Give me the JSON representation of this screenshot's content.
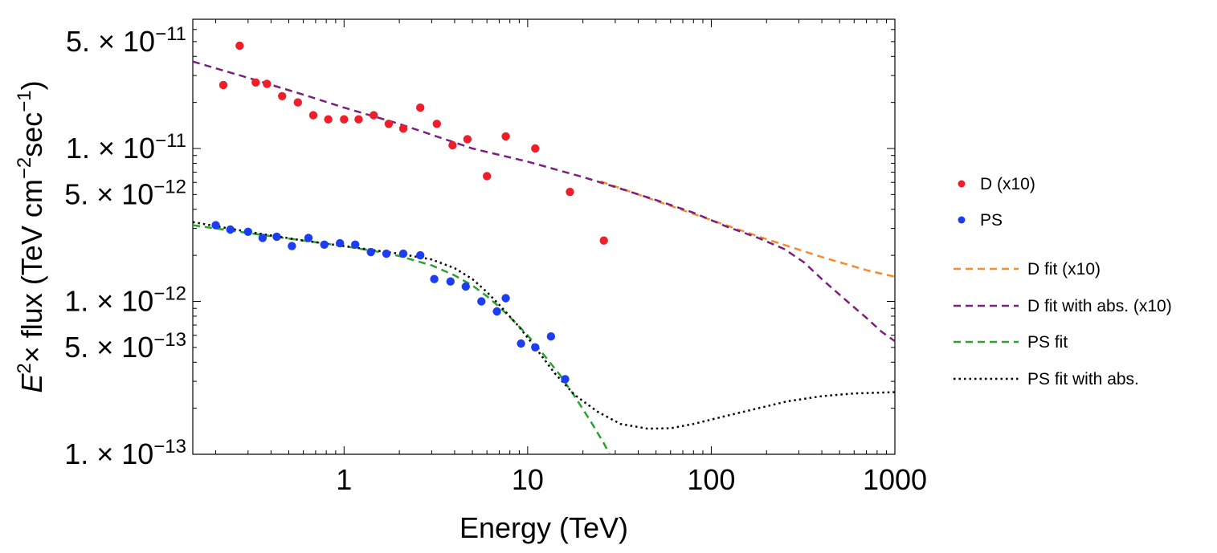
{
  "chart_data": {
    "type": "scatter",
    "x_scale": "log",
    "y_scale": "log",
    "xlabel": "Energy (TeV)",
    "ylabel_prefix": "E",
    "ylabel_sup": "2",
    "ylabel_main": "× flux (TeV cm",
    "ylabel_sup2": "−2",
    "ylabel_mid": "sec",
    "ylabel_sup3": "−1",
    "ylabel_end": ")",
    "xlim": [
      0.15,
      1000
    ],
    "ylim": [
      1e-13,
      7e-11
    ],
    "x_ticks": [
      {
        "value": 1,
        "label": "1"
      },
      {
        "value": 10,
        "label": "10"
      },
      {
        "value": 100,
        "label": "100"
      },
      {
        "value": 1000,
        "label": "1000"
      }
    ],
    "y_ticks": [
      {
        "value": 1e-13,
        "label": "1. × 10",
        "exp": "−13"
      },
      {
        "value": 5e-13,
        "label": "5. × 10",
        "exp": "−13"
      },
      {
        "value": 1e-12,
        "label": "1. × 10",
        "exp": "−12"
      },
      {
        "value": 5e-12,
        "label": "5. × 10",
        "exp": "−12"
      },
      {
        "value": 1e-11,
        "label": "1. × 10",
        "exp": "−11"
      },
      {
        "value": 5e-11,
        "label": "5. × 10",
        "exp": "−11"
      }
    ],
    "scatter_series": [
      {
        "name": "D (x10)",
        "color": "#ee1f2b",
        "points": [
          [
            0.22,
            2.6e-11
          ],
          [
            0.27,
            4.7e-11
          ],
          [
            0.33,
            2.7e-11
          ],
          [
            0.38,
            2.65e-11
          ],
          [
            0.46,
            2.2e-11
          ],
          [
            0.56,
            2e-11
          ],
          [
            0.68,
            1.65e-11
          ],
          [
            0.82,
            1.55e-11
          ],
          [
            1.0,
            1.55e-11
          ],
          [
            1.2,
            1.55e-11
          ],
          [
            1.45,
            1.65e-11
          ],
          [
            1.75,
            1.45e-11
          ],
          [
            2.1,
            1.35e-11
          ],
          [
            2.6,
            1.85e-11
          ],
          [
            3.2,
            1.45e-11
          ],
          [
            3.9,
            1.05e-11
          ],
          [
            4.7,
            1.15e-11
          ],
          [
            6.0,
            6.6e-12
          ],
          [
            7.6,
            1.2e-11
          ],
          [
            11.0,
            1e-11
          ],
          [
            17.0,
            5.2e-12
          ],
          [
            26.0,
            2.5e-12
          ]
        ]
      },
      {
        "name": "PS",
        "color": "#1c3ef0",
        "points": [
          [
            0.2,
            3.15e-12
          ],
          [
            0.24,
            2.95e-12
          ],
          [
            0.3,
            2.85e-12
          ],
          [
            0.36,
            2.6e-12
          ],
          [
            0.43,
            2.65e-12
          ],
          [
            0.52,
            2.3e-12
          ],
          [
            0.64,
            2.6e-12
          ],
          [
            0.78,
            2.35e-12
          ],
          [
            0.95,
            2.4e-12
          ],
          [
            1.15,
            2.35e-12
          ],
          [
            1.4,
            2.1e-12
          ],
          [
            1.7,
            2.05e-12
          ],
          [
            2.1,
            2.05e-12
          ],
          [
            2.6,
            2e-12
          ],
          [
            3.1,
            1.4e-12
          ],
          [
            3.8,
            1.35e-12
          ],
          [
            4.6,
            1.25e-12
          ],
          [
            5.6,
            1e-12
          ],
          [
            6.8,
            8.6e-13
          ],
          [
            7.6,
            1.05e-12
          ],
          [
            9.2,
            5.3e-13
          ],
          [
            11.0,
            5e-13
          ],
          [
            13.4,
            5.9e-13
          ],
          [
            16.0,
            3.1e-13
          ]
        ]
      }
    ],
    "line_series": [
      {
        "name": "D fit (x10)",
        "color": "#f58a2e",
        "dash": "dashed",
        "points": [
          [
            25,
            6.1e-12
          ],
          [
            50,
            4.55e-12
          ],
          [
            100,
            3.4e-12
          ],
          [
            200,
            2.55e-12
          ],
          [
            400,
            1.95e-12
          ],
          [
            700,
            1.6e-12
          ],
          [
            1000,
            1.45e-12
          ]
        ]
      },
      {
        "name": "D fit with abs. (x10)",
        "color": "#7a1f7e",
        "dash": "dashed",
        "points": [
          [
            0.15,
            3.7e-11
          ],
          [
            0.3,
            2.9e-11
          ],
          [
            0.6,
            2.25e-11
          ],
          [
            1,
            1.85e-11
          ],
          [
            2,
            1.45e-11
          ],
          [
            5,
            1e-11
          ],
          [
            10,
            8.2e-12
          ],
          [
            20,
            6.5e-12
          ],
          [
            30,
            5.6e-12
          ],
          [
            50,
            4.6e-12
          ],
          [
            80,
            3.8e-12
          ],
          [
            120,
            3.1e-12
          ],
          [
            180,
            2.6e-12
          ],
          [
            250,
            2.2e-12
          ],
          [
            320,
            1.8e-12
          ],
          [
            400,
            1.4e-12
          ],
          [
            550,
            1e-12
          ],
          [
            700,
            7.8e-13
          ],
          [
            850,
            6.3e-13
          ],
          [
            1000,
            5.5e-13
          ]
        ]
      },
      {
        "name": "PS fit",
        "color": "#2aa32a",
        "dash": "dashed",
        "points": [
          [
            0.15,
            3.15e-12
          ],
          [
            0.3,
            2.8e-12
          ],
          [
            0.6,
            2.5e-12
          ],
          [
            1,
            2.3e-12
          ],
          [
            1.5,
            2.12e-12
          ],
          [
            2,
            1.98e-12
          ],
          [
            3,
            1.72e-12
          ],
          [
            4,
            1.48e-12
          ],
          [
            5,
            1.27e-12
          ],
          [
            6,
            1.08e-12
          ],
          [
            7,
            9.2e-13
          ],
          [
            8,
            7.9e-13
          ],
          [
            10,
            6e-13
          ],
          [
            12,
            4.6e-13
          ],
          [
            15,
            3.3e-13
          ],
          [
            18,
            2.4e-13
          ],
          [
            22,
            1.65e-13
          ],
          [
            26,
            1.18e-13
          ],
          [
            29,
            9.2e-14
          ]
        ]
      },
      {
        "name": "PS fit with abs.",
        "color": "#000000",
        "dash": "dotted",
        "points": [
          [
            0.15,
            3.3e-12
          ],
          [
            0.3,
            2.85e-12
          ],
          [
            0.6,
            2.5e-12
          ],
          [
            1,
            2.3e-12
          ],
          [
            2,
            2.05e-12
          ],
          [
            3,
            1.88e-12
          ],
          [
            4,
            1.65e-12
          ],
          [
            5,
            1.4e-12
          ],
          [
            6,
            1.15e-12
          ],
          [
            7,
            9.5e-13
          ],
          [
            9,
            6.8e-13
          ],
          [
            11,
            5e-13
          ],
          [
            14,
            3.4e-13
          ],
          [
            18,
            2.45e-13
          ],
          [
            24,
            1.9e-13
          ],
          [
            32,
            1.58e-13
          ],
          [
            45,
            1.47e-13
          ],
          [
            60,
            1.48e-13
          ],
          [
            80,
            1.58e-13
          ],
          [
            120,
            1.78e-13
          ],
          [
            180,
            2e-13
          ],
          [
            260,
            2.22e-13
          ],
          [
            400,
            2.4e-13
          ],
          [
            600,
            2.5e-13
          ],
          [
            1000,
            2.55e-13
          ]
        ]
      }
    ],
    "legend_position": "right"
  }
}
